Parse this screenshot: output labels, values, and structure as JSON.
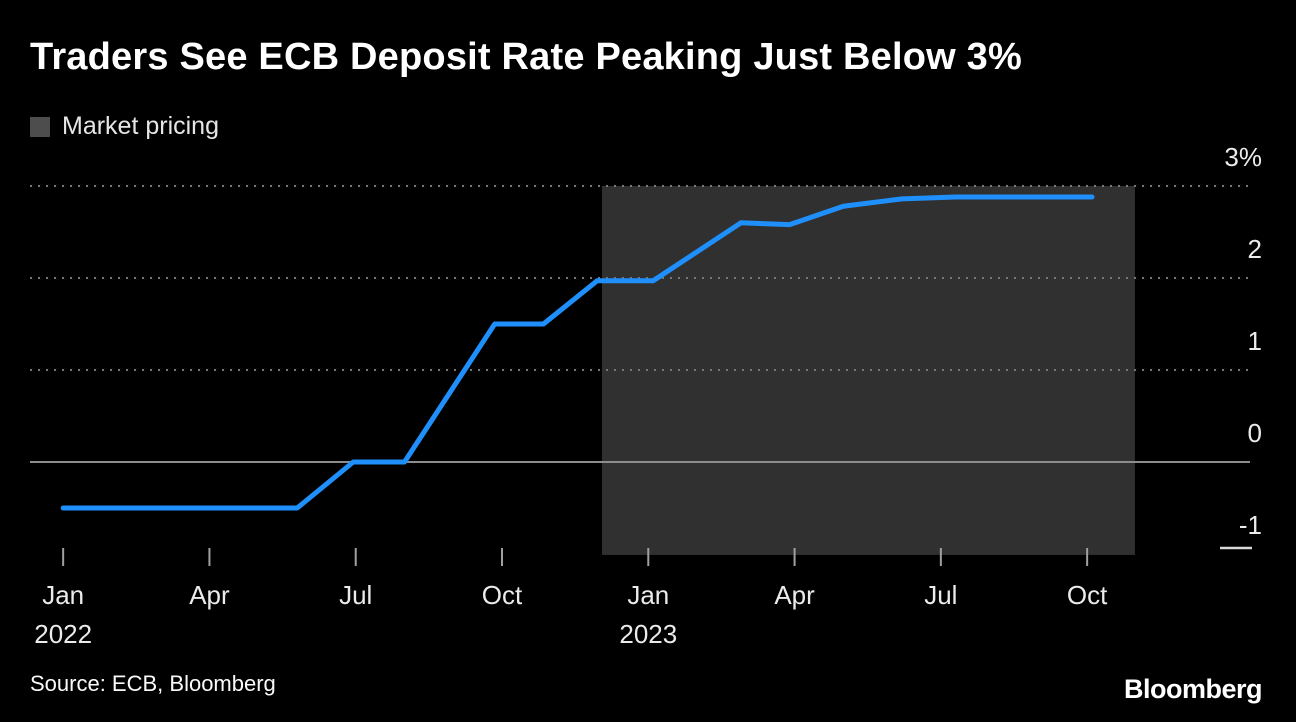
{
  "title": "Traders See ECB Deposit Rate Peaking Just Below 3%",
  "legend": {
    "label": "Market pricing"
  },
  "source": "Source: ECB, Bloomberg",
  "logo": "Bloomberg",
  "colors": {
    "background": "#000000",
    "line": "#1f8ffb",
    "grid_dotted": "#777777",
    "zero_line": "#8c8c8c",
    "tick_mark": "#a0a0a0",
    "stub_line": "#d9d9d9",
    "shade": "#303030",
    "legend_swatch": "#4d4d4d",
    "text": "#ffffff"
  },
  "chart_data": {
    "type": "line",
    "title": "Traders See ECB Deposit Rate Peaking Just Below 3%",
    "xlabel": "",
    "ylabel": "%",
    "x_unit": "months since Jan 2022",
    "xlim": [
      -0.68,
      24.34
    ],
    "ylim": [
      -1,
      3
    ],
    "grid": "horizontal dotted, labels on right",
    "legend_position": "top-left",
    "series": [
      {
        "name": "Market pricing",
        "x": [
          0,
          4.8,
          5.95,
          7.0,
          8.85,
          9.85,
          10.95,
          12.1,
          13.9,
          14.9,
          16.0,
          17.2,
          18.3,
          21.1
        ],
        "values": [
          -0.5,
          -0.5,
          0.0,
          0.0,
          1.5,
          1.5,
          1.97,
          1.97,
          2.6,
          2.58,
          2.78,
          2.86,
          2.88,
          2.88
        ]
      }
    ],
    "x_ticks": [
      {
        "x": 0,
        "label": "Jan",
        "sublabel": "2022"
      },
      {
        "x": 3,
        "label": "Apr"
      },
      {
        "x": 6,
        "label": "Jul"
      },
      {
        "x": 9,
        "label": "Oct"
      },
      {
        "x": 12,
        "label": "Jan",
        "sublabel": "2023"
      },
      {
        "x": 15,
        "label": "Apr"
      },
      {
        "x": 18,
        "label": "Jul"
      },
      {
        "x": 21,
        "label": "Oct"
      }
    ],
    "y_ticks": [
      {
        "value": 3,
        "label": "3%",
        "line": "dotted"
      },
      {
        "value": 2,
        "label": "2",
        "line": "dotted"
      },
      {
        "value": 1,
        "label": "1",
        "line": "dotted"
      },
      {
        "value": 0,
        "label": "0",
        "line": "solid"
      },
      {
        "value": -1,
        "label": "-1",
        "line": "stub"
      }
    ],
    "shaded_region": {
      "label": "Market pricing",
      "x_start": 11.05,
      "x_end": 21.98,
      "y_top": 3.0,
      "y_bottom": -1.01
    }
  }
}
